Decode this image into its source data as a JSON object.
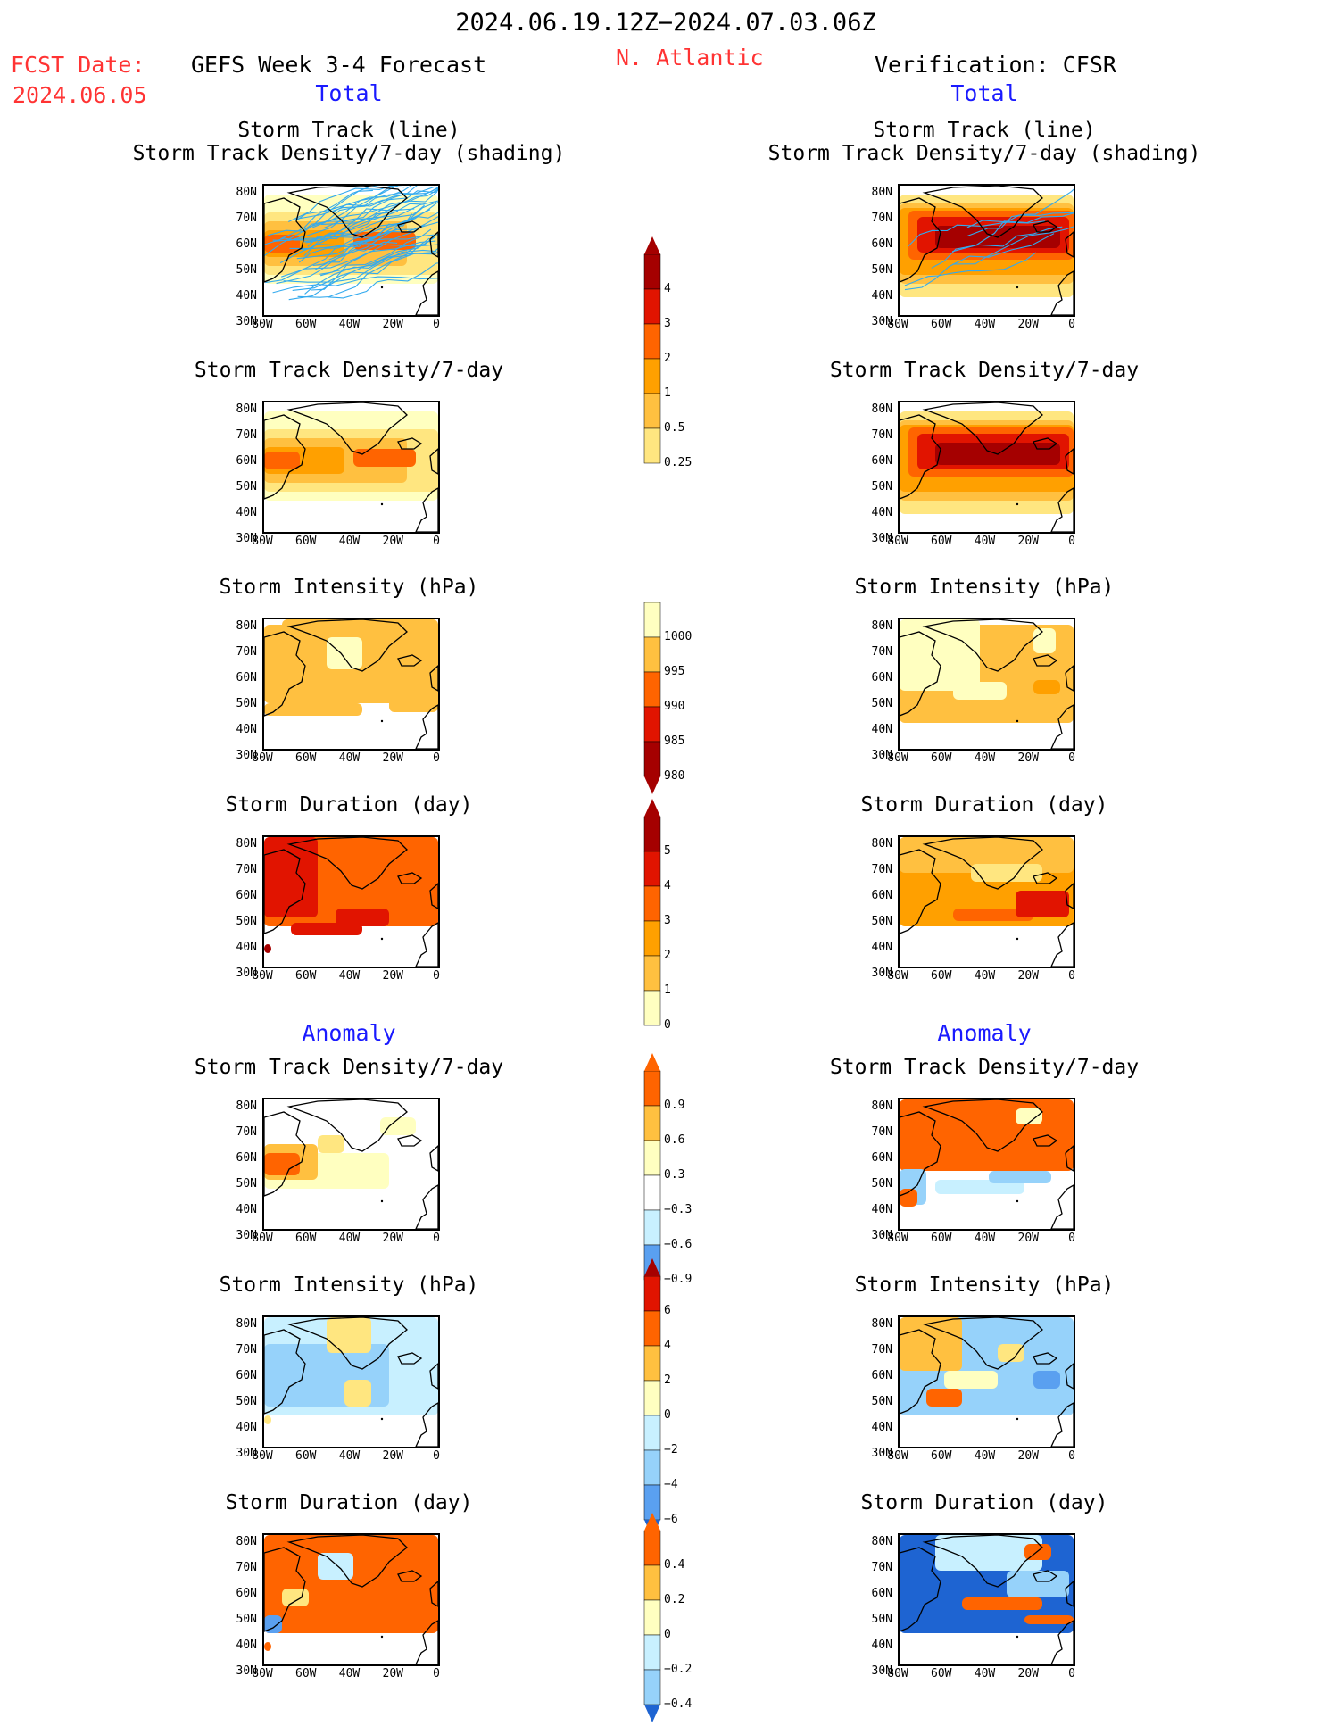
{
  "header": {
    "period": "2024.06.19.12Z−2024.07.03.06Z",
    "fcst_label": "FCST Date:",
    "fcst_date": "2024.06.05",
    "model": "GEFS Week 3-4 Forecast",
    "region": "N. Atlantic",
    "verification": "Verification: CFSR",
    "total_left": "Total",
    "total_right": "Total",
    "anomaly_left": "Anomaly",
    "anomaly_right": "Anomaly"
  },
  "panel_titles": {
    "track_line": "Storm Track (line)",
    "track_density_shading": "Storm Track Density/7-day (shading)",
    "track_density": "Storm Track Density/7-day",
    "intensity": "Storm Intensity (hPa)",
    "duration": "Storm Duration (day)"
  },
  "axes": {
    "lat_ticks": [
      "80N",
      "70N",
      "60N",
      "50N",
      "40N",
      "30N"
    ],
    "lon_ticks": [
      "80W",
      "60W",
      "40W",
      "20W",
      "0"
    ]
  },
  "colorbars": {
    "density": [
      "4",
      "3",
      "2",
      "1",
      "0.5",
      "0.25"
    ],
    "intensity": [
      "1000",
      "995",
      "990",
      "985",
      "980"
    ],
    "duration": [
      "5",
      "4",
      "3",
      "2",
      "1",
      "0"
    ],
    "density_anom": [
      "0.9",
      "0.6",
      "0.3",
      "−0.3",
      "−0.6",
      "−0.9"
    ],
    "intensity_anom": [
      "6",
      "4",
      "2",
      "0",
      "−2",
      "−4",
      "−6"
    ],
    "duration_anom": [
      "0.4",
      "0.2",
      "0",
      "−0.2",
      "−0.4"
    ]
  },
  "colors": {
    "warm": [
      "#ffffc0",
      "#ffe680",
      "#ffc040",
      "#ffa000",
      "#ff6400",
      "#e11400",
      "#a50000"
    ],
    "cool": [
      "#c8f0ff",
      "#96d2fa",
      "#5aa0f0",
      "#1e64d2"
    ],
    "track_line": "#33aaee"
  }
}
